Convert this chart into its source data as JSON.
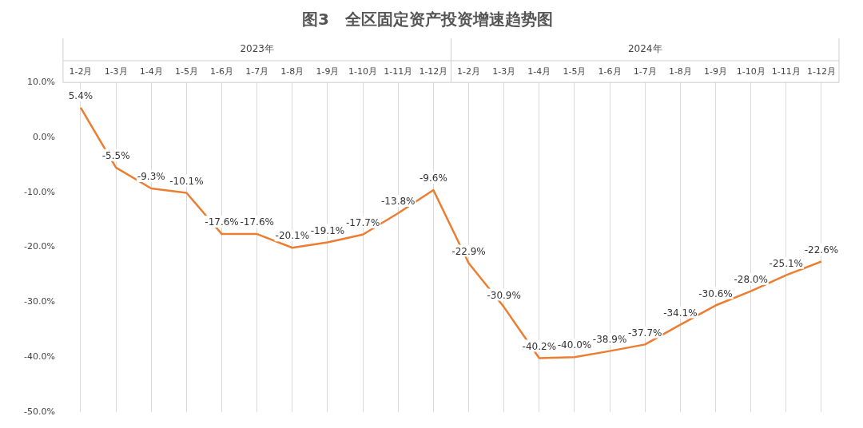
{
  "chart_data": {
    "type": "line",
    "title": "图3　全区固定资产投资增速趋势图",
    "categories": [
      "1-2月",
      "1-3月",
      "1-4月",
      "1-5月",
      "1-6月",
      "1-7月",
      "1-8月",
      "1-9月",
      "1-10月",
      "1-11月",
      "1-12月",
      "1-2月",
      "1-3月",
      "1-4月",
      "1-5月",
      "1-6月",
      "1-7月",
      "1-8月",
      "1-9月",
      "1-10月",
      "1-11月",
      "1-12月"
    ],
    "series": [
      {
        "color": "#ed7d31",
        "values": [
          5.4,
          -5.5,
          -9.3,
          -10.1,
          -17.6,
          -17.6,
          -20.1,
          -19.1,
          -17.7,
          -13.8,
          -9.6,
          -22.9,
          -30.9,
          -40.2,
          -40.0,
          -38.9,
          -37.7,
          -34.1,
          -30.6,
          -28.0,
          -25.1,
          -22.6
        ],
        "value_labels": [
          "5.4%",
          "-5.5%",
          "-9.3%",
          "-10.1%",
          "-17.6%",
          "-17.6%",
          "-20.1%",
          "-19.1%",
          "-17.7%",
          "-13.8%",
          "-9.6%",
          "-22.9%",
          "-30.9%",
          "-40.2%",
          "-40.0%",
          "-38.9%",
          "-37.7%",
          "-34.1%",
          "-30.6%",
          "-28.0%",
          "-25.1%",
          "-22.6%"
        ]
      }
    ],
    "annotations": [
      "2023年",
      "2024年"
    ],
    "ylim": [
      -50,
      10
    ],
    "yticks": [
      {
        "value": 10,
        "label": "10.0%"
      },
      {
        "value": 0,
        "label": "0.0%"
      },
      {
        "value": -10,
        "label": "-10.0%"
      },
      {
        "value": -20,
        "label": "-20.0%"
      },
      {
        "value": -30,
        "label": "-30.0%"
      },
      {
        "value": -40,
        "label": "-40.0%"
      },
      {
        "value": -50,
        "label": "-50.0%"
      }
    ],
    "grid": "x",
    "legend": false,
    "marker": "none",
    "line_style": "solid"
  }
}
